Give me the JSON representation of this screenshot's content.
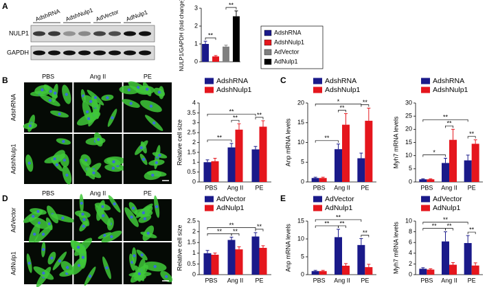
{
  "panel_labels": [
    "A",
    "B",
    "C",
    "D",
    "E"
  ],
  "blot": {
    "lanes": [
      "AdshRNA",
      "AdshNulp1",
      "AdVector",
      "AdNulp1"
    ],
    "proteins": [
      "NULP1",
      "GAPDH"
    ]
  },
  "micrographs": [
    {
      "columns": [
        "PBS",
        "Ang II",
        "PE"
      ],
      "rows": [
        "AdshRNA",
        "AdshNulp1"
      ]
    },
    {
      "columns": [
        "PBS",
        "Ang II",
        "PE"
      ],
      "rows": [
        "AdVector",
        "AdNulp1"
      ]
    }
  ],
  "chart_data": [
    {
      "type": "bar",
      "ylabel": "NULP1/GAPDH (fold change)",
      "categories": [
        null
      ],
      "legend": "outside-right",
      "series": [
        {
          "name": "AdshRNA",
          "color": "#1a1a8a",
          "values": [
            1.0
          ],
          "errors": [
            0.15
          ]
        },
        {
          "name": "AdshNulp1",
          "color": "#e5161d",
          "values": [
            0.3
          ],
          "errors": [
            0.05
          ]
        },
        {
          "name": "AdVector",
          "color": "#808080",
          "values": [
            0.85
          ],
          "errors": [
            0.08
          ]
        },
        {
          "name": "AdNulp1",
          "color": "#000000",
          "values": [
            2.55
          ],
          "errors": [
            0.3
          ]
        }
      ],
      "ylim": [
        0,
        3
      ],
      "yticks": [
        0,
        1,
        2,
        3
      ],
      "significance": [
        {
          "label": "**",
          "from": [
            0,
            0
          ],
          "to": [
            1,
            0
          ]
        },
        {
          "label": "**",
          "from": [
            2,
            0
          ],
          "to": [
            3,
            0
          ]
        }
      ]
    },
    {
      "type": "bar",
      "ylabel": "Relative cell size",
      "categories": [
        "PBS",
        "Ang II",
        "PE"
      ],
      "legend": "above",
      "series": [
        {
          "name": "AdshRNA",
          "color": "#1a1a8a",
          "values": [
            1.0,
            1.75,
            1.65
          ],
          "errors": [
            0.12,
            0.2,
            0.15
          ]
        },
        {
          "name": "AdshNulp1",
          "color": "#e5161d",
          "values": [
            1.05,
            2.65,
            2.8
          ],
          "errors": [
            0.15,
            0.3,
            0.3
          ]
        }
      ],
      "ylim": [
        0,
        4
      ],
      "yticks": [
        0,
        0.5,
        1,
        1.5,
        2,
        2.5,
        3,
        3.5,
        4
      ],
      "significance": [
        {
          "label": "**",
          "from": [
            0,
            0
          ],
          "to": [
            0,
            1
          ]
        },
        {
          "label": "**",
          "from": [
            0,
            1
          ],
          "to": [
            1,
            1
          ]
        },
        {
          "label": "**",
          "from": [
            0,
            2
          ],
          "to": [
            1,
            2
          ]
        },
        {
          "label": "**",
          "from": [
            0,
            0
          ],
          "to": [
            0,
            2
          ]
        }
      ]
    },
    {
      "type": "bar",
      "ylabel": "Anp mRNA levels",
      "categories": [
        "PBS",
        "Ang II",
        "PE"
      ],
      "legend": "above",
      "series": [
        {
          "name": "AdshRNA",
          "color": "#1a1a8a",
          "values": [
            1,
            8.3,
            6
          ],
          "errors": [
            0.2,
            1.3,
            1.3
          ]
        },
        {
          "name": "AdshNulp1",
          "color": "#e5161d",
          "values": [
            1,
            14.5,
            15.5
          ],
          "errors": [
            0.2,
            2.8,
            3.2
          ]
        }
      ],
      "ylim": [
        0,
        20
      ],
      "yticks": [
        0,
        5,
        10,
        15,
        20
      ],
      "significance": [
        {
          "label": "**",
          "from": [
            0,
            0
          ],
          "to": [
            0,
            1
          ]
        },
        {
          "label": "**",
          "from": [
            0,
            1
          ],
          "to": [
            1,
            1
          ]
        },
        {
          "label": "**",
          "from": [
            0,
            2
          ],
          "to": [
            1,
            2
          ]
        },
        {
          "label": "*",
          "from": [
            0,
            0
          ],
          "to": [
            0,
            2
          ]
        }
      ]
    },
    {
      "type": "bar",
      "ylabel": "Myh7 mRNA levels",
      "categories": [
        "PBS",
        "Ang II",
        "PE"
      ],
      "legend": "above",
      "series": [
        {
          "name": "AdshRNA",
          "color": "#1a1a8a",
          "values": [
            1,
            7.2,
            8.2
          ],
          "errors": [
            0.2,
            1.8,
            2
          ]
        },
        {
          "name": "AdshNulp1",
          "color": "#e5161d",
          "values": [
            1,
            16,
            14.5
          ],
          "errors": [
            0.2,
            4,
            1.5
          ]
        }
      ],
      "ylim": [
        0,
        30
      ],
      "yticks": [
        0,
        5,
        10,
        15,
        20,
        25,
        30
      ],
      "significance": [
        {
          "label": "*",
          "from": [
            0,
            0
          ],
          "to": [
            0,
            1
          ]
        },
        {
          "label": "**",
          "from": [
            0,
            1
          ],
          "to": [
            1,
            1
          ]
        },
        {
          "label": "**",
          "from": [
            0,
            2
          ],
          "to": [
            1,
            2
          ]
        },
        {
          "label": "**",
          "from": [
            0,
            0
          ],
          "to": [
            0,
            2
          ]
        }
      ]
    },
    {
      "type": "bar",
      "ylabel": "Relative cell size",
      "categories": [
        "PBS",
        "Ang II",
        "PE"
      ],
      "legend": "above",
      "series": [
        {
          "name": "AdVector",
          "color": "#1a1a8a",
          "values": [
            1.0,
            1.62,
            1.78
          ],
          "errors": [
            0.13,
            0.13,
            0.18
          ]
        },
        {
          "name": "AdNulp1",
          "color": "#e5161d",
          "values": [
            0.93,
            1.18,
            1.25
          ],
          "errors": [
            0.08,
            0.12,
            0.1
          ]
        }
      ],
      "ylim": [
        0,
        2.5
      ],
      "yticks": [
        0,
        0.5,
        1,
        1.5,
        2,
        2.5
      ],
      "significance": [
        {
          "label": "**",
          "from": [
            0,
            0
          ],
          "to": [
            0,
            1
          ]
        },
        {
          "label": "**",
          "from": [
            0,
            1
          ],
          "to": [
            1,
            1
          ]
        },
        {
          "label": "**",
          "from": [
            0,
            2
          ],
          "to": [
            1,
            2
          ]
        },
        {
          "label": "**",
          "from": [
            0,
            0
          ],
          "to": [
            0,
            2
          ]
        }
      ]
    },
    {
      "type": "bar",
      "ylabel": "Anp mRNA levels",
      "categories": [
        "PBS",
        "Ang II",
        "PE"
      ],
      "legend": "above",
      "series": [
        {
          "name": "AdVector",
          "color": "#1a1a8a",
          "values": [
            1,
            10.5,
            8.3
          ],
          "errors": [
            0.2,
            2.2,
            1.8
          ]
        },
        {
          "name": "AdNulp1",
          "color": "#e5161d",
          "values": [
            1,
            2.5,
            2.1
          ],
          "errors": [
            0.2,
            0.6,
            0.8
          ]
        }
      ],
      "ylim": [
        0,
        15
      ],
      "yticks": [
        0,
        5,
        10,
        15
      ],
      "significance": [
        {
          "label": "**",
          "from": [
            0,
            0
          ],
          "to": [
            0,
            1
          ]
        },
        {
          "label": "**",
          "from": [
            0,
            1
          ],
          "to": [
            1,
            1
          ]
        },
        {
          "label": "**",
          "from": [
            0,
            2
          ],
          "to": [
            1,
            2
          ]
        },
        {
          "label": "**",
          "from": [
            0,
            0
          ],
          "to": [
            0,
            2
          ]
        }
      ]
    },
    {
      "type": "bar",
      "ylabel": "Myh7 mRNA levels",
      "categories": [
        "PBS",
        "Ang II",
        "PE"
      ],
      "legend": "above",
      "series": [
        {
          "name": "AdVector",
          "color": "#1a1a8a",
          "values": [
            1.1,
            6.2,
            5.9
          ],
          "errors": [
            0.2,
            1.8,
            1.4
          ]
        },
        {
          "name": "AdNulp1",
          "color": "#e5161d",
          "values": [
            0.95,
            1.85,
            1.7
          ],
          "errors": [
            0.15,
            0.4,
            0.5
          ]
        }
      ],
      "ylim": [
        0,
        10
      ],
      "yticks": [
        0,
        2,
        4,
        6,
        8,
        10
      ],
      "significance": [
        {
          "label": "**",
          "from": [
            0,
            0
          ],
          "to": [
            0,
            1
          ]
        },
        {
          "label": "**",
          "from": [
            0,
            1
          ],
          "to": [
            1,
            1
          ]
        },
        {
          "label": "**",
          "from": [
            0,
            2
          ],
          "to": [
            1,
            2
          ]
        },
        {
          "label": "**",
          "from": [
            0,
            0
          ],
          "to": [
            0,
            2
          ]
        }
      ]
    }
  ]
}
